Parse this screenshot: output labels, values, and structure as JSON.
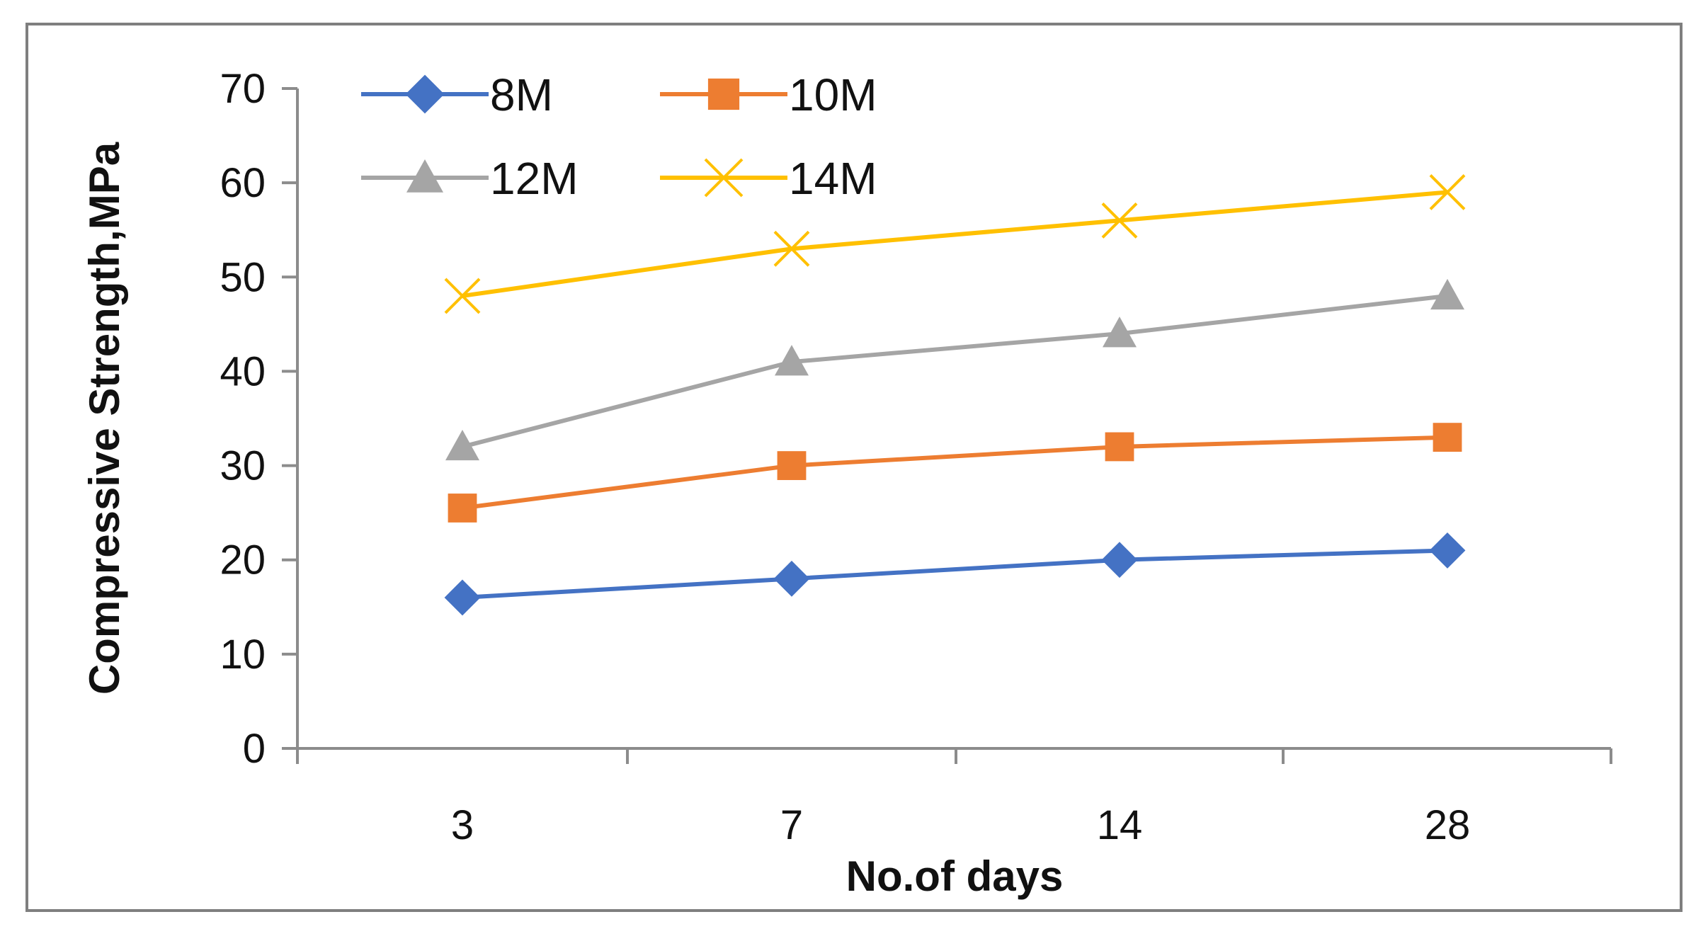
{
  "chart_data": {
    "type": "line",
    "title": "",
    "xlabel": "No.of days",
    "ylabel": "Compressive Strength,MPa",
    "categories": [
      "3",
      "7",
      "14",
      "28"
    ],
    "ylim": [
      0,
      70
    ],
    "yticks": [
      "0",
      "10",
      "20",
      "30",
      "40",
      "50",
      "60",
      "70"
    ],
    "grid": false,
    "legend_position": "top-left",
    "series": [
      {
        "name": "8M",
        "values": [
          16,
          18,
          20,
          21
        ],
        "color": "#4472C4",
        "marker": "diamond"
      },
      {
        "name": "10M",
        "values": [
          25.5,
          30,
          32,
          33
        ],
        "color": "#ED7D31",
        "marker": "square"
      },
      {
        "name": "12M",
        "values": [
          32,
          41,
          44,
          48
        ],
        "color": "#A5A5A5",
        "marker": "triangle"
      },
      {
        "name": "14M",
        "values": [
          48,
          53,
          56,
          59
        ],
        "color": "#FFC000",
        "marker": "x"
      }
    ]
  }
}
